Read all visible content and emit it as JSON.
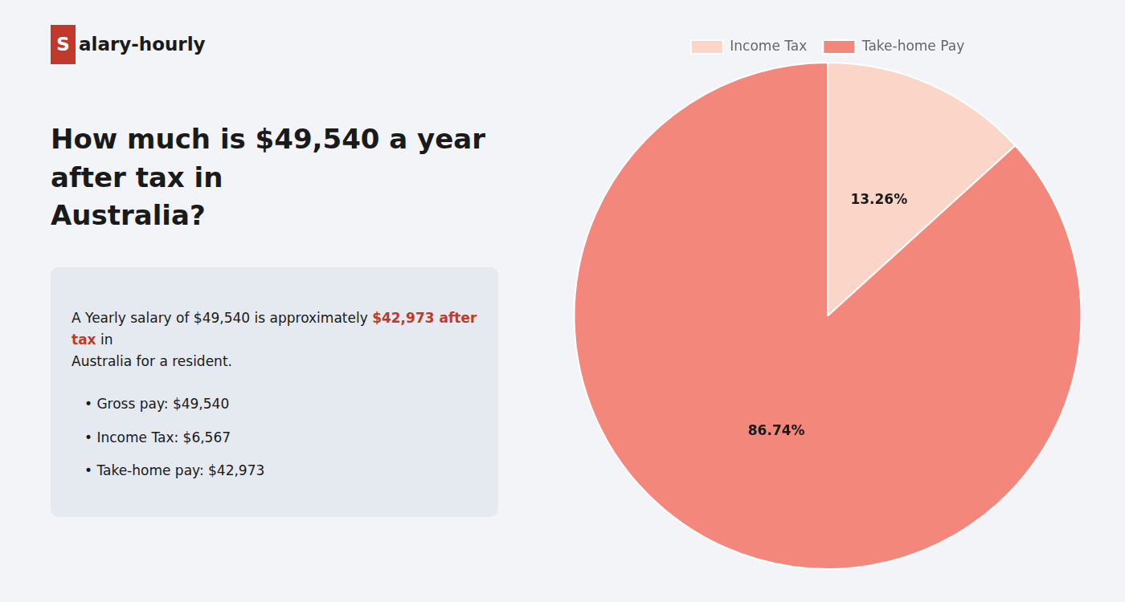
{
  "chart_data": {
    "type": "pie",
    "title": [
      "How much is $49,540 a year after tax in",
      "Australia?"
    ],
    "annotations": [
      [
        "S",
        "alary-hourly"
      ],
      [
        "A Yearly salary of $49,540 is approximately ",
        "$42,973 after tax",
        " in"
      ],
      [
        "Australia for a resident."
      ],
      [
        "•  Gross pay: $49,540"
      ],
      [
        "•  Income Tax: $6,567"
      ],
      [
        "•  Take-home pay: $42,973"
      ]
    ],
    "categories": [
      "Income Tax",
      "Take-home Pay"
    ],
    "values": [
      13.26,
      86.74
    ],
    "value_labels": [
      "13.26%",
      "86.74%"
    ],
    "data_labels": true,
    "colors": [
      "#fad5c8",
      "#f4877c"
    ],
    "legend": "top"
  }
}
